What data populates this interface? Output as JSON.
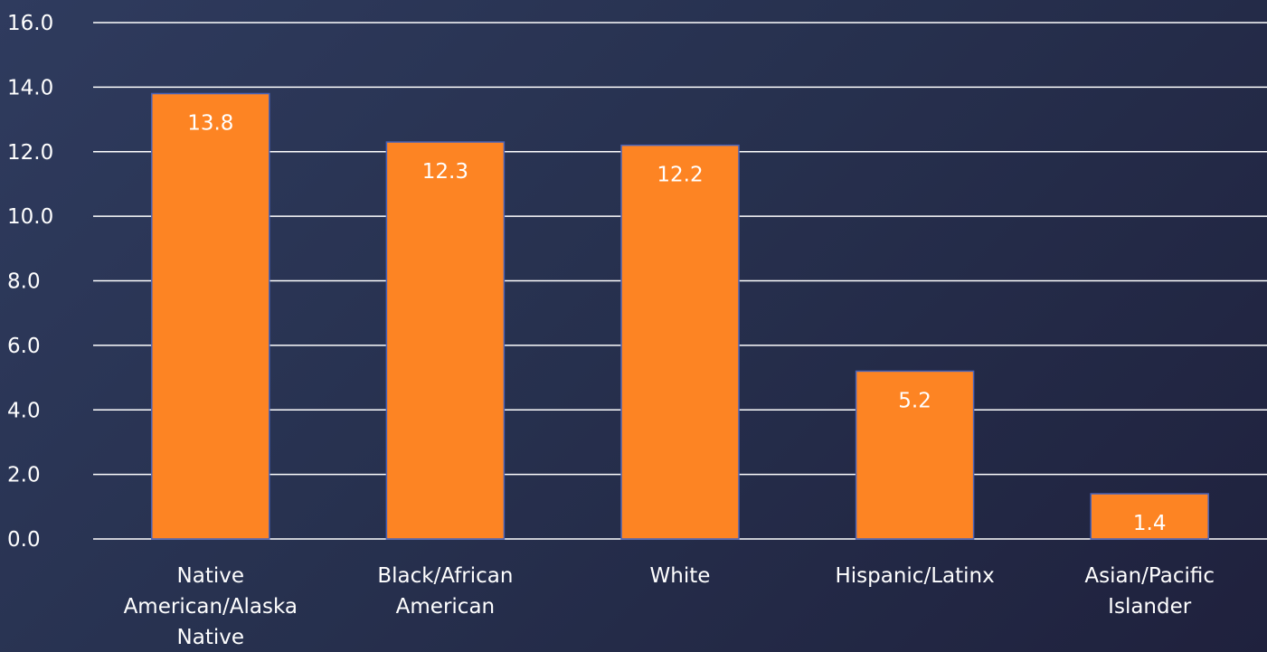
{
  "chart_data": {
    "type": "bar",
    "categories": [
      [
        "Native",
        "American/Alaska",
        "Native"
      ],
      [
        "Black/African",
        "American"
      ],
      [
        "White"
      ],
      [
        "Hispanic/Latinx"
      ],
      [
        "Asian/Pacific",
        "Islander"
      ]
    ],
    "values": [
      13.8,
      12.3,
      12.2,
      5.2,
      1.4
    ],
    "data_labels": [
      "13.8",
      "12.3",
      "12.2",
      "5.2",
      "1.4"
    ],
    "y_ticks": [
      "0.0",
      "2.0",
      "4.0",
      "6.0",
      "8.0",
      "10.0",
      "12.0",
      "14.0",
      "16.0"
    ],
    "ylim": [
      0,
      16
    ],
    "grid": true,
    "bar_color": "#fd8423",
    "bar_border_color": "#4a63b8",
    "text_color": "#ffffff",
    "title": "",
    "xlabel": "",
    "ylabel": ""
  }
}
